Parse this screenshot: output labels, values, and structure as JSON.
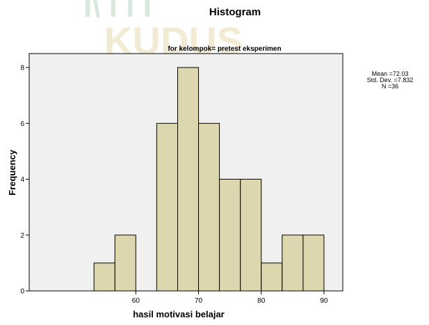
{
  "chart_data": {
    "type": "bar",
    "title": "Histogram",
    "subtitle": "for kelompok= pretest eksperimen",
    "xlabel": "hasil motivasi belajar",
    "ylabel": "Frequency",
    "bin_edges": [
      53.33,
      56.67,
      60.0,
      63.33,
      66.67,
      70.0,
      73.33,
      76.67,
      80.0,
      83.33,
      86.67,
      90.0
    ],
    "values": [
      1,
      2,
      0,
      6,
      8,
      6,
      4,
      4,
      1,
      2,
      2
    ],
    "xlim": [
      43,
      93
    ],
    "ylim": [
      0,
      8
    ],
    "x_ticks": [
      60,
      70,
      80,
      90
    ],
    "y_ticks": [
      0,
      2,
      4,
      6,
      8
    ],
    "grid": false,
    "bar_color": "#d9d4a6",
    "plot_background": "#f0f0f0",
    "stats": {
      "mean": "Mean =72.03",
      "std_dev": "Std. Dev. =7.832",
      "n": "N =36"
    }
  }
}
